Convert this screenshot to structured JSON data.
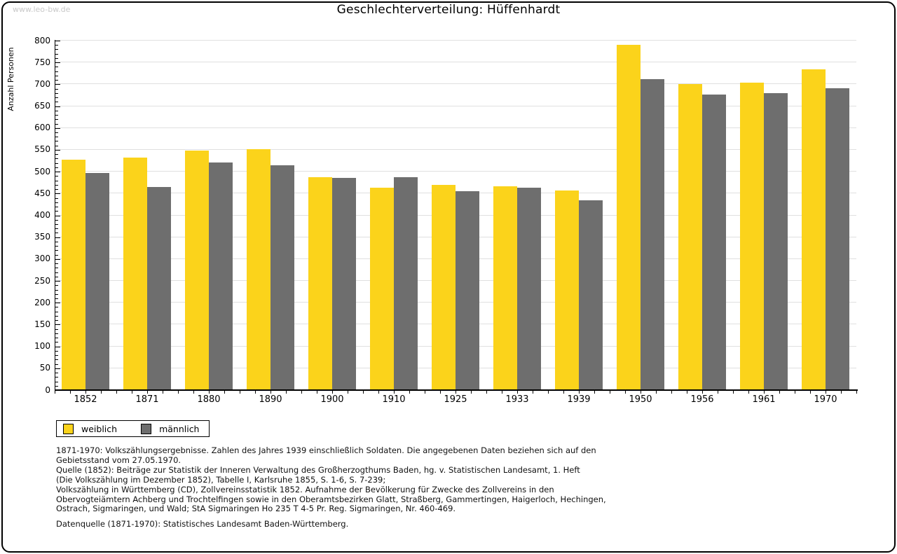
{
  "watermark": "www.leo-bw.de",
  "header": {
    "title": "Geschlechterverteilung: Hüffenhardt"
  },
  "chart_data": {
    "type": "bar",
    "title": "Geschlechterverteilung: Hüffenhardt",
    "xlabel": "",
    "ylabel": "Anzahl Personen",
    "ylim": [
      0,
      800
    ],
    "ytick_step": 50,
    "ytick_minor_step": 10,
    "grid": true,
    "legend_position": "bottom-left",
    "categories": [
      "1852",
      "1871",
      "1880",
      "1890",
      "1900",
      "1910",
      "1925",
      "1933",
      "1939",
      "1950",
      "1956",
      "1961",
      "1970"
    ],
    "series": [
      {
        "name": "weiblich",
        "color": "#FBD31B",
        "values": [
          528,
          532,
          548,
          552,
          487,
          464,
          469,
          466,
          457,
          790,
          701,
          704,
          734
        ]
      },
      {
        "name": "männlich",
        "color": "#6E6E6E",
        "values": [
          497,
          465,
          521,
          515,
          486,
          487,
          455,
          463,
          435,
          712,
          676,
          679,
          691
        ]
      }
    ]
  },
  "footer": {
    "notes": "1871-1970: Volkszählungsergebnisse. Zahlen des Jahres 1939 einschließlich Soldaten. Die angegebenen Daten beziehen sich auf den\nGebietsstand vom 27.05.1970.\nQuelle (1852): Beiträge zur Statistik der Inneren Verwaltung des Großherzogthums Baden, hg. v. Statistischen Landesamt, 1. Heft\n(Die Volkszählung im Dezember 1852), Tabelle I, Karlsruhe 1855, S. 1-6, S. 7-239;\nVolkszählung in Württemberg (CD), Zollvereinsstatistik 1852. Aufnahme der Bevölkerung für Zwecke des Zollvereins in den\nObervogteiämtern Achberg und Trochtelfingen sowie in den Oberamtsbezirken Glatt, Straßberg, Gammertingen, Haigerloch, Hechingen,\nOstrach, Sigmaringen, und Wald; StA Sigmaringen Ho 235 T 4-5 Pr. Reg. Sigmaringen, Nr. 460-469.",
    "datasource": "Datenquelle (1871-1970): Statistisches Landesamt Baden-Württemberg."
  }
}
